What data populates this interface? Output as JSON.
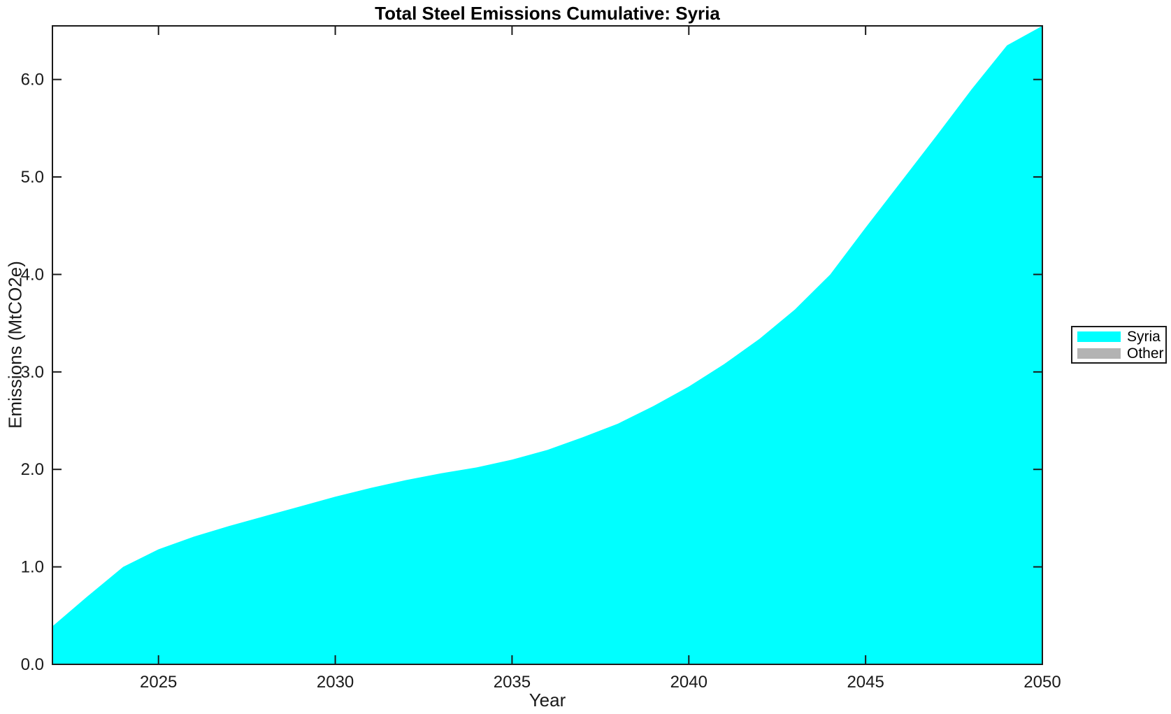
{
  "chart_data": {
    "type": "area",
    "title": "Total Steel Emissions Cumulative: Syria",
    "xlabel": "Year",
    "ylabel": "Emissions (MtCO2e)",
    "x": [
      2022,
      2023,
      2024,
      2025,
      2026,
      2027,
      2028,
      2029,
      2030,
      2031,
      2032,
      2033,
      2034,
      2035,
      2036,
      2037,
      2038,
      2039,
      2040,
      2041,
      2042,
      2043,
      2044,
      2045,
      2046,
      2047,
      2048,
      2049,
      2050
    ],
    "series": [
      {
        "name": "Syria",
        "color": "#00ffff",
        "values": [
          0.39,
          0.7,
          1.0,
          1.18,
          1.31,
          1.42,
          1.52,
          1.62,
          1.72,
          1.81,
          1.89,
          1.96,
          2.02,
          2.1,
          2.2,
          2.33,
          2.47,
          2.65,
          2.85,
          3.08,
          3.34,
          3.64,
          4.0,
          4.48,
          4.95,
          5.42,
          5.9,
          6.35,
          6.55
        ]
      },
      {
        "name": "Other",
        "color": "#b3b3b3",
        "values": [
          0,
          0,
          0,
          0,
          0,
          0,
          0,
          0,
          0,
          0,
          0,
          0,
          0,
          0,
          0,
          0,
          0,
          0,
          0,
          0,
          0,
          0,
          0,
          0,
          0,
          0,
          0,
          0,
          0
        ]
      }
    ],
    "xlim": [
      2022,
      2050
    ],
    "ylim": [
      0,
      6.55
    ],
    "xticks": [
      2025,
      2030,
      2035,
      2040,
      2045,
      2050
    ],
    "xtick_labels": [
      "2025",
      "2030",
      "2035",
      "2040",
      "2045",
      "2050"
    ],
    "yticks": [
      0,
      1,
      2,
      3,
      4,
      5,
      6
    ],
    "ytick_labels": [
      "0.0",
      "1.0",
      "2.0",
      "3.0",
      "4.0",
      "5.0",
      "6.0"
    ],
    "grid": false,
    "legend_position": "right-outside",
    "axis_color": "#1a1a1a",
    "background_color": "#ffffff"
  },
  "legend": {
    "items": [
      {
        "label": "Syria",
        "color": "#00ffff"
      },
      {
        "label": "Other",
        "color": "#b3b3b3"
      }
    ]
  }
}
